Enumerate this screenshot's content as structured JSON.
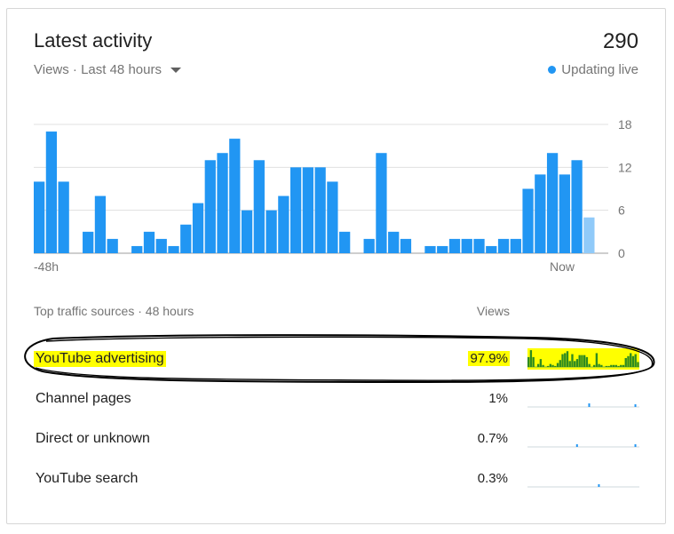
{
  "header": {
    "title": "Latest activity",
    "total": "290",
    "subtitle": "Views · Last 48 hours",
    "live_label": "Updating live"
  },
  "chart_data": {
    "type": "bar",
    "title": "",
    "ylim": [
      0,
      18
    ],
    "y_ticks": [
      "18",
      "12",
      "6",
      "0"
    ],
    "x_labels": [
      "-48h",
      "Now"
    ],
    "grid": true,
    "values": [
      10,
      17,
      10,
      0,
      3,
      8,
      2,
      0,
      1,
      3,
      2,
      1,
      4,
      7,
      13,
      14,
      16,
      6,
      13,
      6,
      8,
      12,
      12,
      12,
      10,
      3,
      0,
      2,
      14,
      3,
      2,
      0,
      1,
      1,
      2,
      2,
      2,
      1,
      2,
      2,
      9,
      11,
      14,
      11,
      13
    ],
    "partial_last_value": 5,
    "bar_color": "#2196f3",
    "partial_color": "#90caf9"
  },
  "traffic": {
    "header_label": "Top traffic sources · 48 hours",
    "views_label": "Views",
    "rows": [
      {
        "label": "YouTube advertising",
        "value": "97.9%",
        "highlighted": true
      },
      {
        "label": "Channel pages",
        "value": "1%",
        "highlighted": false
      },
      {
        "label": "Direct or unknown",
        "value": "0.7%",
        "highlighted": false
      },
      {
        "label": "YouTube search",
        "value": "0.3%",
        "highlighted": false
      }
    ]
  },
  "colors": {
    "accent": "#2196f3",
    "highlight": "#ffff00",
    "spark_green": "#2e8b1f",
    "annotation": "#000000"
  }
}
